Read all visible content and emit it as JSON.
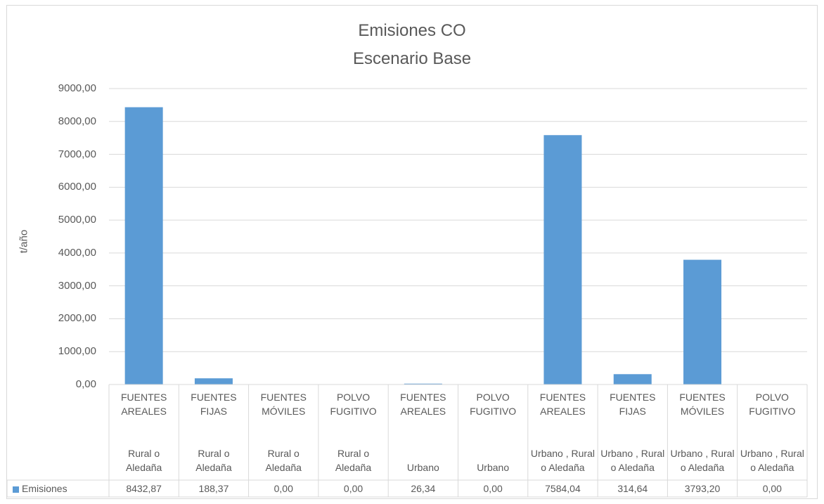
{
  "chart_data": {
    "type": "bar",
    "title": "Emisiones CO",
    "subtitle": "Escenario Base",
    "ylabel": "t/año",
    "xlabel": "",
    "ylim": [
      0,
      9000
    ],
    "yticks": [
      "0,00",
      "1000,00",
      "2000,00",
      "3000,00",
      "4000,00",
      "5000,00",
      "6000,00",
      "7000,00",
      "8000,00",
      "9000,00"
    ],
    "grid": true,
    "legend_position": "data-table",
    "color": "#5b9bd5",
    "categories": [
      {
        "source": "FUENTES AREALES",
        "zone": "Rural o Aledaña"
      },
      {
        "source": "FUENTES FIJAS",
        "zone": "Rural o Aledaña"
      },
      {
        "source": "FUENTES MÓVILES",
        "zone": "Rural o Aledaña"
      },
      {
        "source": "POLVO FUGITIVO",
        "zone": "Rural o Aledaña"
      },
      {
        "source": "FUENTES AREALES",
        "zone": "Urbano"
      },
      {
        "source": "POLVO FUGITIVO",
        "zone": "Urbano"
      },
      {
        "source": "FUENTES AREALES",
        "zone": "Urbano , Rural o Aledaña"
      },
      {
        "source": "FUENTES FIJAS",
        "zone": "Urbano , Rural o Aledaña"
      },
      {
        "source": "FUENTES MÓVILES",
        "zone": "Urbano , Rural o Aledaña"
      },
      {
        "source": "POLVO FUGITIVO",
        "zone": "Urbano , Rural o Aledaña"
      }
    ],
    "series": [
      {
        "name": "Emisiones",
        "values": [
          8432.87,
          188.37,
          0,
          0,
          26.34,
          0,
          7584.04,
          314.64,
          3793.2,
          0
        ],
        "value_labels": [
          "8432,87",
          "188,37",
          "0,00",
          "0,00",
          "26,34",
          "0,00",
          "7584,04",
          "314,64",
          "3793,20",
          "0,00"
        ]
      }
    ]
  }
}
